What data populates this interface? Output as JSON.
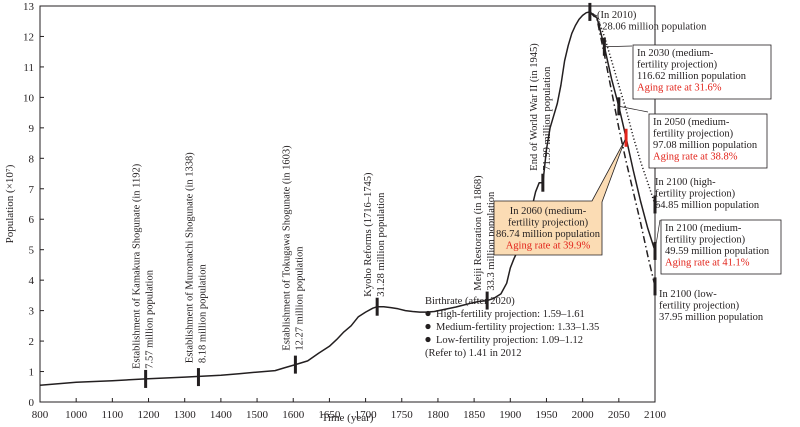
{
  "chart_data": {
    "type": "line",
    "title": "",
    "xlabel": "Time (year)",
    "ylabel": "Population (×10⁷)",
    "xlim": [
      800,
      2100
    ],
    "ylim": [
      0,
      13
    ],
    "xticks": [
      "800",
      "1000",
      "1100",
      "1200",
      "1300",
      "1400",
      "1500",
      "1600",
      "1650",
      "1700",
      "1750",
      "1800",
      "1850",
      "1900",
      "1950",
      "2000",
      "2050",
      "2100"
    ],
    "yticks": [
      "0",
      "1",
      "2",
      "3",
      "4",
      "5",
      "6",
      "7",
      "8",
      "9",
      "10",
      "11",
      "12",
      "13"
    ],
    "series": [
      {
        "style": "solid",
        "x": [
          800,
          1000,
          1100,
          1192,
          1300,
          1400,
          1450,
          1500,
          1550,
          1575,
          1603,
          1620,
          1635,
          1650,
          1660,
          1670,
          1680,
          1690,
          1700,
          1710,
          1716,
          1725,
          1735,
          1745,
          1755,
          1765,
          1775,
          1785,
          1795,
          1805,
          1815,
          1825,
          1835,
          1845,
          1856,
          1868,
          1877,
          1887,
          1895,
          1900,
          1905,
          1910,
          1915,
          1920,
          1925,
          1930,
          1935,
          1940,
          1945,
          1950,
          1955,
          1960,
          1965,
          1970,
          1975,
          1980,
          1985,
          1990,
          1995,
          2000,
          2005,
          2010,
          2020,
          2030,
          2040,
          2050,
          2060,
          2070,
          2080,
          2090,
          2100
        ],
        "y": [
          0.55,
          0.65,
          0.7,
          0.757,
          0.818,
          0.88,
          0.93,
          0.98,
          1.03,
          1.12,
          1.227,
          1.35,
          1.6,
          1.83,
          2.05,
          2.3,
          2.5,
          2.8,
          2.95,
          3.08,
          3.128,
          3.13,
          3.1,
          3.06,
          3.0,
          2.97,
          2.95,
          2.95,
          2.97,
          3.02,
          3.07,
          3.12,
          3.18,
          3.24,
          3.3,
          3.33,
          3.4,
          3.55,
          3.9,
          4.4,
          4.7,
          4.95,
          5.3,
          5.6,
          5.9,
          6.4,
          6.9,
          7.2,
          7.199,
          8.3,
          9.0,
          9.4,
          9.8,
          10.4,
          11.2,
          11.7,
          12.1,
          12.36,
          12.56,
          12.69,
          12.78,
          12.806,
          12.6,
          11.662,
          10.6,
          9.708,
          8.674,
          7.6,
          6.6,
          5.7,
          4.959
        ]
      },
      {
        "style": "dotted",
        "x": [
          2010,
          2020,
          2030,
          2040,
          2050,
          2060,
          2070,
          2080,
          2090,
          2100
        ],
        "y": [
          12.806,
          12.65,
          12.0,
          11.2,
          10.4,
          9.6,
          8.7,
          7.9,
          7.2,
          6.485
        ]
      },
      {
        "style": "dashdot",
        "x": [
          2010,
          2020,
          2030,
          2040,
          2050,
          2060,
          2070,
          2080,
          2090,
          2100
        ],
        "y": [
          12.806,
          12.55,
          11.4,
          10.2,
          9.0,
          7.9,
          6.9,
          5.9,
          4.8,
          3.795
        ]
      }
    ],
    "events": [
      {
        "year": 1192,
        "value": 0.757,
        "label": "Establishment of Kamakura Shogunate (in 1192)",
        "sub": "7.57 million population"
      },
      {
        "year": 1338,
        "value": 0.818,
        "label": "Establishment of Muromachi Shogunate (in 1338)",
        "sub": "8.18 million population"
      },
      {
        "year": 1603,
        "value": 1.227,
        "label": "Establishment of Tokugawa Shogunate (in 1603)",
        "sub": "12.27 million population"
      },
      {
        "year": 1716,
        "value": 3.128,
        "label": "Kyoho Reforms (1716–1745)",
        "sub": "31.28 million population"
      },
      {
        "year": 1868,
        "value": 3.33,
        "label": "Meiji Restoration (in 1868)",
        "sub": "33.3 million population"
      },
      {
        "year": 1945,
        "value": 7.199,
        "label": "End of World War II (in 1945)",
        "sub": "71.99 million population"
      }
    ],
    "projections": [
      {
        "year": 2010,
        "value": 12.806,
        "lines": [
          "(In 2010)",
          "128.06 million population"
        ],
        "aging": "",
        "boxed": false,
        "highlight": false
      },
      {
        "year": 2030,
        "value": 11.662,
        "lines": [
          "In 2030 (medium-",
          "fertility projection)",
          "116.62 million population"
        ],
        "aging": "Aging rate at 31.6%",
        "boxed": true,
        "highlight": false
      },
      {
        "year": 2050,
        "value": 9.708,
        "lines": [
          "In 2050 (medium-",
          "fertility projection)",
          "97.08 million population"
        ],
        "aging": "Aging rate at 38.8%",
        "boxed": true,
        "highlight": false
      },
      {
        "year": 2060,
        "value": 8.674,
        "lines": [
          "In 2060 (medium-",
          "fertility projection)",
          "86.74 million population"
        ],
        "aging": "Aging rate at 39.9%",
        "boxed": true,
        "highlight": true
      },
      {
        "year": 2100,
        "value": 6.485,
        "lines": [
          "In 2100 (high-",
          "fertility projection)",
          "64.85 million population"
        ],
        "aging": "",
        "boxed": false,
        "highlight": false
      },
      {
        "year": 2100,
        "value": 4.959,
        "lines": [
          "In 2100 (medium-",
          "fertility projection)",
          "49.59 million population"
        ],
        "aging": "Aging rate at 41.1%",
        "boxed": true,
        "highlight": false
      },
      {
        "year": 2100,
        "value": 3.795,
        "lines": [
          "In 2100 (low-",
          "fertility projection)",
          "37.95 million population"
        ],
        "aging": "",
        "boxed": false,
        "highlight": false
      }
    ],
    "birthrate_note": {
      "title": "Birthrate (after 2020)",
      "items": [
        "High-fertility projection: 1.59–1.61",
        "Medium-fertility projection: 1.33–1.35",
        "Low-fertility projection: 1.09–1.12"
      ],
      "reference": "(Refer to) 1.41 in 2012"
    },
    "colors": {
      "line": "#231f20",
      "aging_text": "#e2231a",
      "highlight_box_fill": "#fbdcb4",
      "highlight_marker": "#e2231a"
    }
  }
}
